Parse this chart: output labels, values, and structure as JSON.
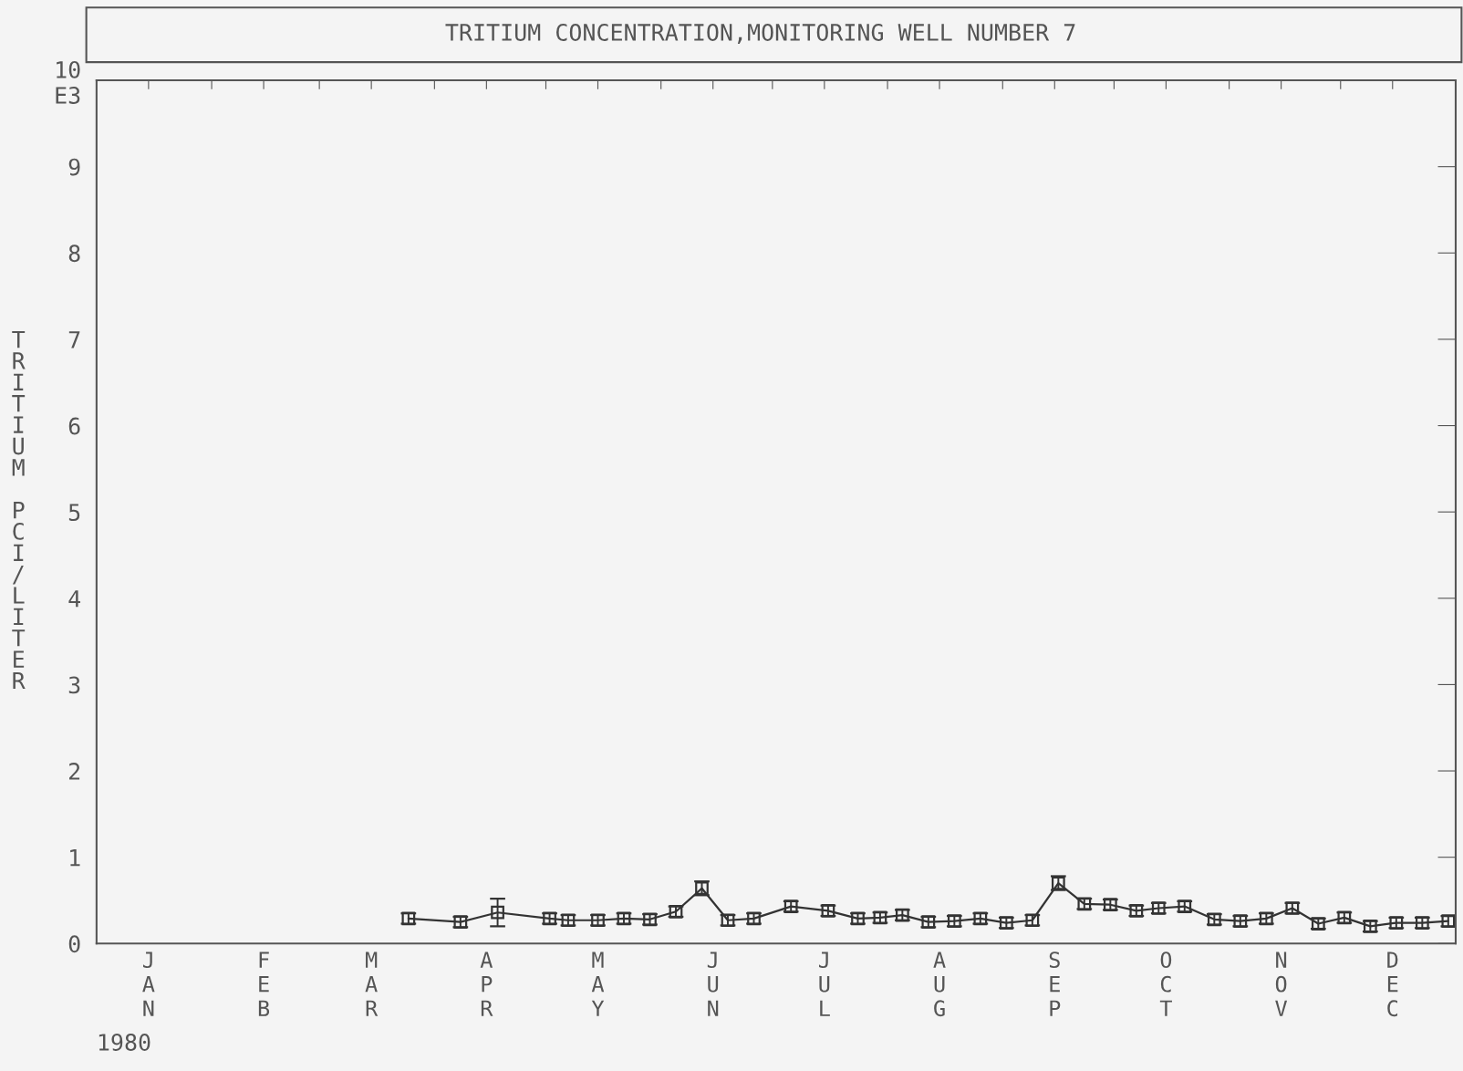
{
  "chart_data": {
    "type": "line",
    "title": "TRITIUM CONCENTRATION,MONITORING WELL NUMBER 7",
    "ylabel": "TRITIUM PCI/LITER",
    "annotations": [
      "1980"
    ],
    "x": [
      "1980-03-25",
      "1980-04-08",
      "1980-04-18",
      "1980-05-02",
      "1980-05-07",
      "1980-05-15",
      "1980-05-22",
      "1980-05-29",
      "1980-06-05",
      "1980-06-12",
      "1980-06-19",
      "1980-06-26",
      "1980-07-06",
      "1980-07-16",
      "1980-07-24",
      "1980-07-30",
      "1980-08-05",
      "1980-08-12",
      "1980-08-19",
      "1980-08-26",
      "1980-09-02",
      "1980-09-09",
      "1980-09-16",
      "1980-09-23",
      "1980-09-30",
      "1980-10-07",
      "1980-10-13",
      "1980-10-20",
      "1980-10-28",
      "1980-11-04",
      "1980-11-11",
      "1980-11-18",
      "1980-11-25",
      "1980-12-02",
      "1980-12-09",
      "1980-12-16",
      "1980-12-23",
      "1980-12-30"
    ],
    "series": [
      {
        "color": "#333333",
        "marker": "square",
        "line_style": "solid",
        "values": [
          0.29,
          0.25,
          0.36,
          0.29,
          0.27,
          0.27,
          0.29,
          0.28,
          0.37,
          0.64,
          0.27,
          0.29,
          0.43,
          0.38,
          0.29,
          0.3,
          0.33,
          0.25,
          0.26,
          0.29,
          0.24,
          0.27,
          0.7,
          0.46,
          0.45,
          0.38,
          0.41,
          0.43,
          0.28,
          0.26,
          0.29,
          0.41,
          0.23,
          0.3,
          0.2,
          0.24,
          0.24,
          0.26
        ],
        "errors": [
          0.06,
          0.06,
          0.16,
          0.06,
          0.06,
          0.06,
          0.06,
          0.06,
          0.06,
          0.08,
          0.06,
          0.06,
          0.06,
          0.06,
          0.06,
          0.06,
          0.06,
          0.06,
          0.06,
          0.06,
          0.06,
          0.06,
          0.08,
          0.06,
          0.06,
          0.06,
          0.06,
          0.06,
          0.06,
          0.06,
          0.06,
          0.06,
          0.06,
          0.06,
          0.06,
          0.06,
          0.06,
          0.06
        ]
      }
    ],
    "xlim": [
      "1980-01-01",
      "1981-01-01"
    ],
    "xticks": [
      {
        "value": "1980-01-15",
        "label": "JAN"
      },
      {
        "value": "1980-02-15",
        "label": "FEB"
      },
      {
        "value": "1980-03-15",
        "label": "MAR"
      },
      {
        "value": "1980-04-15",
        "label": "APR"
      },
      {
        "value": "1980-05-15",
        "label": "MAY"
      },
      {
        "value": "1980-06-15",
        "label": "JUN"
      },
      {
        "value": "1980-07-15",
        "label": "JUL"
      },
      {
        "value": "1980-08-15",
        "label": "AUG"
      },
      {
        "value": "1980-09-15",
        "label": "SEP"
      },
      {
        "value": "1980-10-15",
        "label": "OCT"
      },
      {
        "value": "1980-11-15",
        "label": "NOV"
      },
      {
        "value": "1980-12-15",
        "label": "DEC"
      },
      {
        "value": "1980-02-01",
        "label": null
      },
      {
        "value": "1980-03-01",
        "label": null
      },
      {
        "value": "1980-04-01",
        "label": null
      },
      {
        "value": "1980-05-01",
        "label": null
      },
      {
        "value": "1980-06-01",
        "label": null
      },
      {
        "value": "1980-07-01",
        "label": null
      },
      {
        "value": "1980-08-01",
        "label": null
      },
      {
        "value": "1980-09-01",
        "label": null
      },
      {
        "value": "1980-10-01",
        "label": null
      },
      {
        "value": "1980-11-01",
        "label": null
      },
      {
        "value": "1980-12-01",
        "label": null
      }
    ],
    "ylim": [
      0,
      10
    ],
    "yticks": [
      0,
      1,
      2,
      3,
      4,
      5,
      6,
      7,
      8,
      9,
      {
        "value": 10,
        "label": "10\nE3"
      }
    ],
    "grid": false,
    "legend": false
  }
}
